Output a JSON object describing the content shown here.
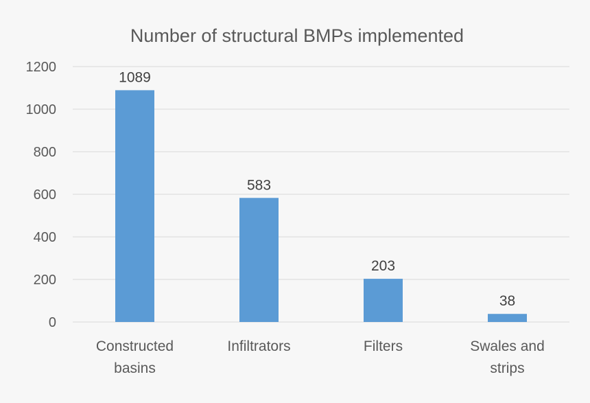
{
  "chart_data": {
    "type": "bar",
    "title": "Number of structural BMPs implemented",
    "xlabel": "",
    "ylabel": "",
    "categories": [
      [
        "Constructed",
        "basins"
      ],
      [
        "Infiltrators"
      ],
      [
        "Filters"
      ],
      [
        "Swales and",
        "strips"
      ]
    ],
    "values": [
      1089,
      583,
      203,
      38
    ],
    "data_labels": [
      "1089",
      "583",
      "203",
      "38"
    ],
    "ylim": [
      0,
      1200
    ],
    "yticks": [
      0,
      200,
      400,
      600,
      800,
      1000,
      1200
    ],
    "grid": true,
    "legend": "none",
    "colors": {
      "bar": "#5b9bd5",
      "grid": "#d9d9d9",
      "text": "#595959",
      "background": "#f7f7f7"
    }
  }
}
